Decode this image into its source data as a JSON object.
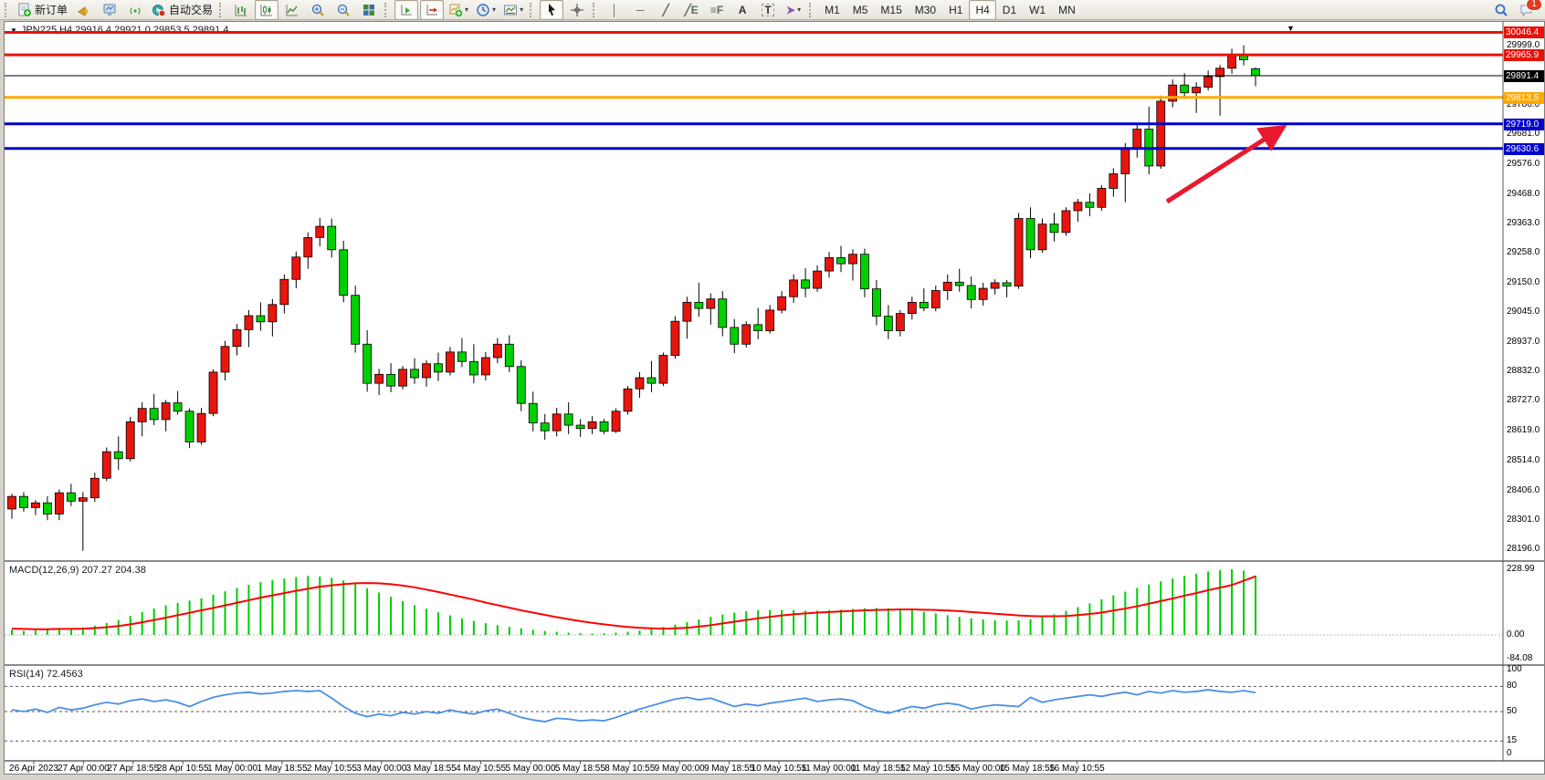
{
  "toolbar": {
    "new_order_label": "新订单",
    "autotrading_label": "自动交易",
    "timeframes": [
      "M1",
      "M5",
      "M15",
      "M30",
      "H1",
      "H4",
      "D1",
      "W1",
      "MN"
    ],
    "selected_timeframe": "H4",
    "notification_count": "1"
  },
  "icons": {
    "caret": "▾",
    "dropdown": "▼",
    "shift_marker": "▼",
    "vline": "│",
    "hline": "─",
    "trendline": "╱",
    "channel": "╱E",
    "fibo": "≡F",
    "text": "A",
    "text_label": "T",
    "arrows": "➤"
  },
  "chart": {
    "symbol_title": "JPN225,H4 29916.4 29921.0 29853.5 29891.4",
    "bid": {
      "price": 29891.4,
      "label": "29891.4",
      "badge_color": "#000000"
    },
    "levels": [
      {
        "price": 30046.4,
        "label": "30046.4",
        "color": "#e8120c",
        "width": 3
      },
      {
        "price": 29965.9,
        "label": "29965.9",
        "color": "#e8120c",
        "width": 3
      },
      {
        "price": 29813.5,
        "label": "29813.5",
        "color": "#ffa800",
        "width": 3
      },
      {
        "price": 29719.0,
        "label": "29719.0",
        "color": "#0000cd",
        "width": 3
      },
      {
        "price": 29630.6,
        "label": "29630.6",
        "color": "#0000cd",
        "width": 3
      }
    ],
    "price_ticks": [
      "29999.0",
      "29786.0",
      "29681.0",
      "29576.0",
      "29468.0",
      "29363.0",
      "29258.0",
      "29150.0",
      "29045.0",
      "28937.0",
      "28832.0",
      "28727.0",
      "28619.0",
      "28514.0",
      "28406.0",
      "28301.0",
      "28196.0"
    ],
    "macd_label": "MACD(12,26,9) 207.27 204.38",
    "macd_scale": [
      "228.99",
      "0.00",
      "-84.08"
    ],
    "rsi_label": "RSI(14) 72.4563",
    "rsi_scale": [
      "100",
      "80",
      "50",
      "15",
      "0"
    ],
    "up_color": "#e8150d",
    "down_color": "#00cf00",
    "macd_hist_color": "#00cc00",
    "macd_signal_color": "#ff0000",
    "rsi_line_color": "#4a8fe2",
    "arrow_color": "#e8192c"
  },
  "chart_data": {
    "type": "candlestick",
    "symbol": "JPN225",
    "timeframe": "H4",
    "title": "JPN225,H4 29916.4 29921.0 29853.5 29891.4",
    "current_bar": {
      "open": 29916.4,
      "high": 29921.0,
      "low": 29853.5,
      "close": 29891.4
    },
    "price_axis_visible_range": [
      28150,
      30090
    ],
    "grid": false,
    "candles": [
      [
        28340,
        28395,
        28305,
        28385
      ],
      [
        28385,
        28400,
        28330,
        28345
      ],
      [
        28345,
        28372,
        28318,
        28362
      ],
      [
        28362,
        28386,
        28300,
        28322
      ],
      [
        28322,
        28410,
        28300,
        28398
      ],
      [
        28398,
        28430,
        28350,
        28368
      ],
      [
        28368,
        28400,
        28190,
        28380
      ],
      [
        28380,
        28470,
        28365,
        28450
      ],
      [
        28450,
        28560,
        28440,
        28545
      ],
      [
        28545,
        28600,
        28480,
        28520
      ],
      [
        28520,
        28670,
        28510,
        28652
      ],
      [
        28652,
        28722,
        28600,
        28700
      ],
      [
        28700,
        28752,
        28640,
        28660
      ],
      [
        28660,
        28730,
        28618,
        28720
      ],
      [
        28720,
        28762,
        28678,
        28690
      ],
      [
        28690,
        28700,
        28558,
        28580
      ],
      [
        28580,
        28702,
        28570,
        28682
      ],
      [
        28682,
        28840,
        28672,
        28830
      ],
      [
        28830,
        28942,
        28800,
        28922
      ],
      [
        28922,
        29002,
        28890,
        28982
      ],
      [
        28982,
        29052,
        28920,
        29032
      ],
      [
        29032,
        29080,
        28978,
        29010
      ],
      [
        29010,
        29092,
        28958,
        29072
      ],
      [
        29072,
        29180,
        29040,
        29162
      ],
      [
        29162,
        29262,
        29130,
        29242
      ],
      [
        29242,
        29330,
        29200,
        29312
      ],
      [
        29312,
        29382,
        29280,
        29352
      ],
      [
        29352,
        29380,
        29240,
        29268
      ],
      [
        29268,
        29300,
        29080,
        29105
      ],
      [
        29105,
        29140,
        28900,
        28930
      ],
      [
        28930,
        28980,
        28760,
        28790
      ],
      [
        28790,
        28842,
        28748,
        28822
      ],
      [
        28822,
        28862,
        28758,
        28780
      ],
      [
        28780,
        28852,
        28768,
        28840
      ],
      [
        28840,
        28880,
        28788,
        28810
      ],
      [
        28810,
        28872,
        28778,
        28860
      ],
      [
        28860,
        28900,
        28798,
        28830
      ],
      [
        28830,
        28920,
        28818,
        28902
      ],
      [
        28902,
        28952,
        28848,
        28868
      ],
      [
        28868,
        28930,
        28790,
        28820
      ],
      [
        28820,
        28902,
        28800,
        28882
      ],
      [
        28882,
        28952,
        28862,
        28930
      ],
      [
        28930,
        28962,
        28830,
        28850
      ],
      [
        28850,
        28872,
        28690,
        28718
      ],
      [
        28718,
        28760,
        28618,
        28648
      ],
      [
        28648,
        28680,
        28588,
        28620
      ],
      [
        28620,
        28702,
        28600,
        28680
      ],
      [
        28680,
        28722,
        28608,
        28640
      ],
      [
        28640,
        28662,
        28598,
        28628
      ],
      [
        28628,
        28672,
        28608,
        28652
      ],
      [
        28652,
        28662,
        28608,
        28618
      ],
      [
        28618,
        28700,
        28612,
        28690
      ],
      [
        28690,
        28780,
        28678,
        28770
      ],
      [
        28770,
        28830,
        28738,
        28810
      ],
      [
        28810,
        28870,
        28758,
        28790
      ],
      [
        28790,
        28900,
        28780,
        28890
      ],
      [
        28890,
        29030,
        28878,
        29012
      ],
      [
        29012,
        29100,
        28950,
        29080
      ],
      [
        29080,
        29150,
        29028,
        29058
      ],
      [
        29058,
        29112,
        29000,
        29092
      ],
      [
        29092,
        29120,
        28958,
        28990
      ],
      [
        28990,
        29020,
        28898,
        28930
      ],
      [
        28930,
        29012,
        28918,
        29000
      ],
      [
        29000,
        29060,
        28948,
        28978
      ],
      [
        28978,
        29070,
        28968,
        29052
      ],
      [
        29052,
        29120,
        29040,
        29100
      ],
      [
        29100,
        29180,
        29078,
        29160
      ],
      [
        29160,
        29202,
        29098,
        29130
      ],
      [
        29130,
        29212,
        29118,
        29192
      ],
      [
        29192,
        29260,
        29168,
        29240
      ],
      [
        29240,
        29282,
        29188,
        29218
      ],
      [
        29218,
        29270,
        29158,
        29252
      ],
      [
        29252,
        29272,
        29098,
        29128
      ],
      [
        29128,
        29160,
        28998,
        29030
      ],
      [
        29030,
        29070,
        28948,
        28978
      ],
      [
        28978,
        29052,
        28958,
        29040
      ],
      [
        29040,
        29100,
        29018,
        29080
      ],
      [
        29080,
        29130,
        29048,
        29060
      ],
      [
        29060,
        29140,
        29048,
        29122
      ],
      [
        29122,
        29180,
        29088,
        29152
      ],
      [
        29152,
        29200,
        29118,
        29140
      ],
      [
        29140,
        29172,
        29058,
        29090
      ],
      [
        29090,
        29150,
        29068,
        29130
      ],
      [
        29130,
        29162,
        29108,
        29150
      ],
      [
        29150,
        29160,
        29098,
        29138
      ],
      [
        29138,
        29400,
        29128,
        29380
      ],
      [
        29380,
        29420,
        29238,
        29268
      ],
      [
        29268,
        29380,
        29258,
        29360
      ],
      [
        29360,
        29400,
        29298,
        29330
      ],
      [
        29330,
        29420,
        29318,
        29408
      ],
      [
        29408,
        29450,
        29368,
        29438
      ],
      [
        29438,
        29470,
        29388,
        29420
      ],
      [
        29420,
        29500,
        29408,
        29488
      ],
      [
        29488,
        29560,
        29458,
        29540
      ],
      [
        29540,
        29650,
        29438,
        29628
      ],
      [
        29628,
        29720,
        29598,
        29700
      ],
      [
        29700,
        29780,
        29538,
        29568
      ],
      [
        29568,
        29820,
        29558,
        29800
      ],
      [
        29800,
        29878,
        29778,
        29858
      ],
      [
        29858,
        29900,
        29808,
        29830
      ],
      [
        29830,
        29868,
        29758,
        29850
      ],
      [
        29850,
        29910,
        29838,
        29888
      ],
      [
        29888,
        29930,
        29748,
        29918
      ],
      [
        29918,
        29988,
        29898,
        29968
      ],
      [
        29968,
        30000,
        29928,
        29948
      ],
      [
        29916.4,
        29921.0,
        29853.5,
        29891.4
      ]
    ],
    "indicators": {
      "macd": {
        "params": "12,26,9",
        "current_main": 207.27,
        "current_signal": 204.38,
        "scale_range": [
          -84.08,
          228.99
        ],
        "histogram": [
          18,
          14,
          16,
          20,
          24,
          21,
          26,
          32,
          42,
          52,
          66,
          80,
          92,
          103,
          112,
          120,
          128,
          140,
          152,
          164,
          175,
          184,
          191,
          197,
          202,
          206,
          204,
          199,
          190,
          178,
          163,
          148,
          133,
          118,
          104,
          91,
          79,
          68,
          58,
          49,
          41,
          34,
          28,
          23,
          18,
          14,
          11,
          8,
          6,
          5,
          6,
          8,
          11,
          15,
          21,
          28,
          36,
          45,
          54,
          63,
          71,
          78,
          83,
          86,
          87,
          87,
          86,
          85,
          85,
          86,
          88,
          91,
          93,
          94,
          93,
          90,
          86,
          81,
          75,
          69,
          63,
          58,
          54,
          51,
          50,
          51,
          55,
          62,
          72,
          84,
          97,
          110,
          124,
          138,
          151,
          164,
          176,
          187,
          197,
          206,
          214,
          221,
          226,
          229,
          224,
          207
        ],
        "signal": [
          22,
          21,
          20,
          20,
          21,
          21,
          22,
          24,
          27,
          31,
          37,
          44,
          52,
          60,
          69,
          77,
          86,
          94,
          103,
          112,
          121,
          130,
          138,
          146,
          154,
          161,
          168,
          173,
          177,
          180,
          181,
          180,
          177,
          172,
          166,
          158,
          150,
          141,
          132,
          123,
          113,
          104,
          95,
          86,
          78,
          70,
          62,
          55,
          48,
          42,
          37,
          32,
          28,
          25,
          23,
          22,
          23,
          25,
          29,
          34,
          40,
          46,
          52,
          58,
          63,
          68,
          72,
          75,
          78,
          80,
          82,
          84,
          86,
          87,
          88,
          89,
          89,
          88,
          87,
          85,
          83,
          80,
          77,
          74,
          71,
          68,
          66,
          65,
          65,
          66,
          69,
          73,
          78,
          85,
          92,
          100,
          109,
          118,
          127,
          137,
          146,
          156,
          165,
          174,
          189,
          204
        ]
      },
      "rsi": {
        "period": 14,
        "current": 72.4563,
        "levels": [
          80,
          50,
          15
        ],
        "scale_range": [
          0,
          100
        ],
        "values": [
          52,
          50,
          53,
          49,
          55,
          52,
          54,
          58,
          61,
          59,
          63,
          65,
          62,
          64,
          61,
          56,
          62,
          67,
          70,
          72,
          73,
          71,
          72,
          74,
          75,
          74,
          75,
          66,
          56,
          48,
          44,
          47,
          45,
          49,
          47,
          50,
          48,
          52,
          49,
          47,
          51,
          53,
          48,
          43,
          40,
          38,
          42,
          41,
          39,
          40,
          39,
          43,
          48,
          53,
          57,
          61,
          65,
          67,
          64,
          66,
          61,
          56,
          59,
          57,
          60,
          62,
          64,
          66,
          62,
          64,
          65,
          63,
          56,
          51,
          48,
          52,
          56,
          54,
          58,
          60,
          58,
          53,
          56,
          58,
          57,
          56,
          67,
          61,
          64,
          66,
          68,
          70,
          68,
          71,
          73,
          70,
          74,
          72,
          75,
          73,
          74,
          76,
          74,
          73,
          75,
          72.5
        ]
      }
    },
    "time_labels": [
      "26 Apr 2023",
      "27 Apr 00:00",
      "27 Apr 18:55",
      "28 Apr 10:55",
      "1 May 00:00",
      "1 May 18:55",
      "2 May 10:55",
      "3 May 00:00",
      "3 May 18:55",
      "4 May 10:55",
      "5 May 00:00",
      "5 May 18:55",
      "8 May 10:55",
      "9 May 00:00",
      "9 May 18:55",
      "10 May 10:55",
      "11 May 00:00",
      "11 May 18:55",
      "12 May 10:55",
      "15 May 00:00",
      "15 May 18:55",
      "16 May 10:55"
    ],
    "horizontal_lines": [
      30046.4,
      29965.9,
      29813.5,
      29719.0,
      29630.6
    ],
    "annotations": [
      {
        "type": "arrow",
        "from_xy": [
          1273,
          197
        ],
        "to_xy": [
          1398,
          117
        ],
        "color": "#e8192c",
        "thickness": 5
      }
    ]
  }
}
